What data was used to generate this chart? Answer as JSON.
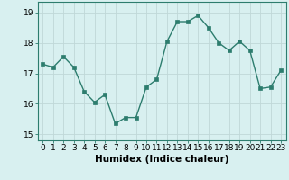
{
  "x": [
    0,
    1,
    2,
    3,
    4,
    5,
    6,
    7,
    8,
    9,
    10,
    11,
    12,
    13,
    14,
    15,
    16,
    17,
    18,
    19,
    20,
    21,
    22,
    23
  ],
  "y": [
    17.3,
    17.2,
    17.55,
    17.2,
    16.4,
    16.05,
    16.3,
    15.35,
    15.55,
    15.55,
    16.55,
    16.8,
    18.05,
    18.7,
    18.7,
    18.9,
    18.5,
    18.0,
    17.75,
    18.05,
    17.75,
    16.5,
    16.55,
    17.1
  ],
  "line_color": "#2d7d6e",
  "bg_color": "#d8f0f0",
  "grid_color": "#c0d8d8",
  "xlabel": "Humidex (Indice chaleur)",
  "ylim": [
    14.8,
    19.35
  ],
  "xlim": [
    -0.5,
    23.5
  ],
  "yticks": [
    15,
    16,
    17,
    18,
    19
  ],
  "xticks": [
    0,
    1,
    2,
    3,
    4,
    5,
    6,
    7,
    8,
    9,
    10,
    11,
    12,
    13,
    14,
    15,
    16,
    17,
    18,
    19,
    20,
    21,
    22,
    23
  ],
  "xlabel_fontsize": 7.5,
  "tick_fontsize": 6.5,
  "marker_size": 2.5,
  "line_width": 1.0
}
